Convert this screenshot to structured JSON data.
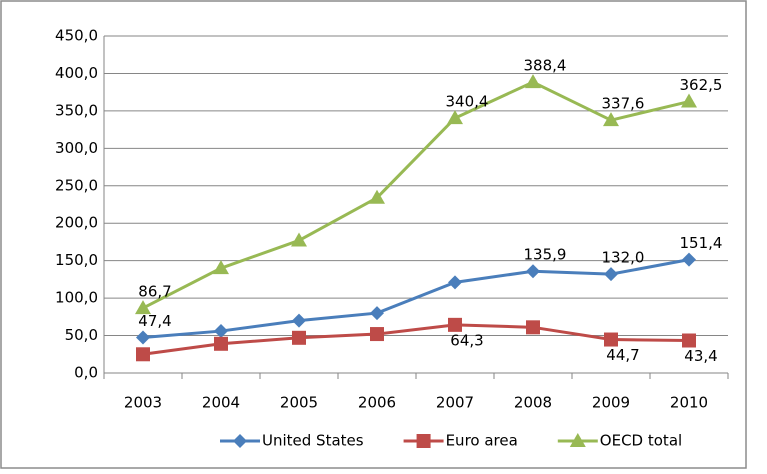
{
  "chart_data": {
    "type": "line",
    "categories": [
      "2003",
      "2004",
      "2005",
      "2006",
      "2007",
      "2008",
      "2009",
      "2010"
    ],
    "series": [
      {
        "name": "United States",
        "color": "#4a7ebb",
        "marker": "diamond",
        "values": [
          47.4,
          56,
          70,
          80,
          121,
          135.9,
          132.0,
          151.4
        ],
        "value_labels": [
          "47,4",
          null,
          null,
          null,
          null,
          "135,9",
          "132,0",
          "151,4"
        ]
      },
      {
        "name": "Euro area",
        "color": "#be4b48",
        "marker": "square",
        "values": [
          25,
          39,
          47,
          52,
          64.3,
          61,
          44.7,
          43.4
        ],
        "value_labels": [
          null,
          null,
          null,
          null,
          "64,3",
          null,
          "44,7",
          "43,4"
        ]
      },
      {
        "name": "OECD total",
        "color": "#98b954",
        "marker": "triangle",
        "values": [
          86.7,
          140,
          177,
          234,
          340.4,
          388.4,
          337.6,
          362.5
        ],
        "value_labels": [
          "86,7",
          null,
          null,
          null,
          "340,4",
          "388,4",
          "337,6",
          "362,5"
        ]
      }
    ],
    "ylim": [
      0,
      450
    ],
    "yticks": [
      {
        "value": 0,
        "label": "0,0"
      },
      {
        "value": 50,
        "label": "50,0"
      },
      {
        "value": 100,
        "label": "100,0"
      },
      {
        "value": 150,
        "label": "150,0"
      },
      {
        "value": 200,
        "label": "200,0"
      },
      {
        "value": 250,
        "label": "250,0"
      },
      {
        "value": 300,
        "label": "300,0"
      },
      {
        "value": 350,
        "label": "350,0"
      },
      {
        "value": 400,
        "label": "400,0"
      },
      {
        "value": 450,
        "label": "450,0"
      }
    ],
    "grid": true,
    "legend": "bottom"
  }
}
